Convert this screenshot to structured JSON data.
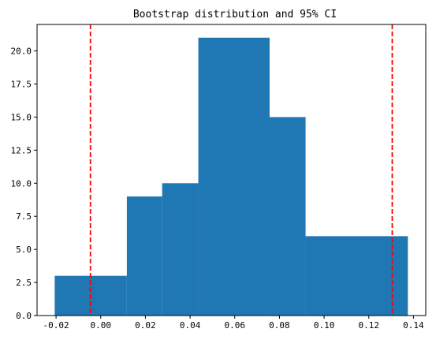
{
  "chart_data": {
    "type": "bar",
    "title": "Bootstrap distribution and 95% CI",
    "xlabel": "",
    "ylabel": "",
    "bins": [
      {
        "x0": -0.0206,
        "x1": 0.0117,
        "count": 3
      },
      {
        "x0": 0.0117,
        "x1": 0.0275,
        "count": 9
      },
      {
        "x0": 0.0275,
        "x1": 0.0437,
        "count": 10
      },
      {
        "x0": 0.0437,
        "x1": 0.0756,
        "count": 21
      },
      {
        "x0": 0.0756,
        "x1": 0.0917,
        "count": 15
      },
      {
        "x0": 0.0917,
        "x1": 0.1375,
        "count": 6
      }
    ],
    "ci_lines": [
      -0.0046,
      0.1305
    ],
    "xlim": [
      -0.0285,
      0.1455
    ],
    "ylim": [
      0,
      22
    ],
    "x_ticks": [
      -0.02,
      0.0,
      0.02,
      0.04,
      0.06,
      0.08,
      0.1,
      0.12,
      0.14
    ],
    "x_tick_labels": [
      "-0.02",
      "0.00",
      "0.02",
      "0.04",
      "0.06",
      "0.08",
      "0.10",
      "0.12",
      "0.14"
    ],
    "y_ticks": [
      0,
      2.5,
      5,
      7.5,
      10,
      12.5,
      15,
      17.5,
      20
    ],
    "y_tick_labels": [
      "0.0",
      "2.5",
      "5.0",
      "7.5",
      "10.0",
      "12.5",
      "15.0",
      "17.5",
      "20.0"
    ],
    "bar_color": "#1f77b4",
    "ci_color": "#ff0000",
    "grid": false
  }
}
